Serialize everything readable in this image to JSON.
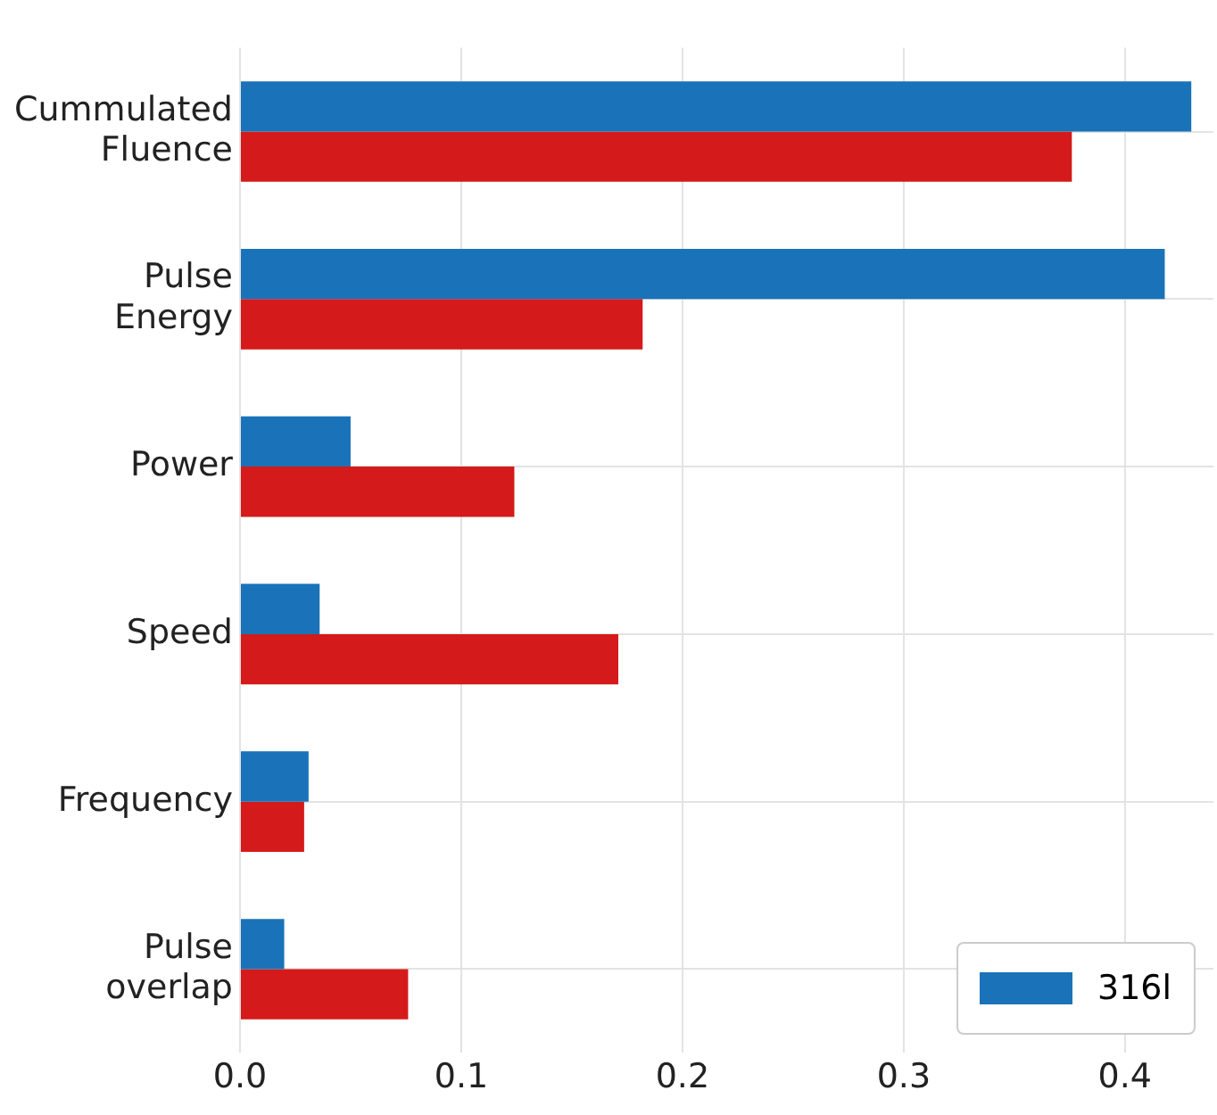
{
  "chart_data": {
    "type": "bar",
    "orientation": "horizontal",
    "categories": [
      "Cummulated Fluence",
      "Pulse Energy",
      "Power",
      "Speed",
      "Frequency",
      "Pulse overlap"
    ],
    "series": [
      {
        "name": "316l",
        "color": "#1a73b8",
        "values": [
          0.43,
          0.418,
          0.05,
          0.036,
          0.031,
          0.02
        ]
      },
      {
        "color": "#d41a1a",
        "values": [
          0.376,
          0.182,
          0.124,
          0.171,
          0.029,
          0.076
        ]
      }
    ],
    "xlim": [
      0,
      0.44
    ],
    "xticks": [
      {
        "value": 0,
        "label": "0.0"
      },
      {
        "value": 0.1,
        "label": "0.1"
      },
      {
        "value": 0.2,
        "label": "0.2"
      },
      {
        "value": 0.3,
        "label": "0.3"
      },
      {
        "value": 0.4,
        "label": "0.4"
      }
    ],
    "grid": true,
    "legend": "bottom right"
  }
}
